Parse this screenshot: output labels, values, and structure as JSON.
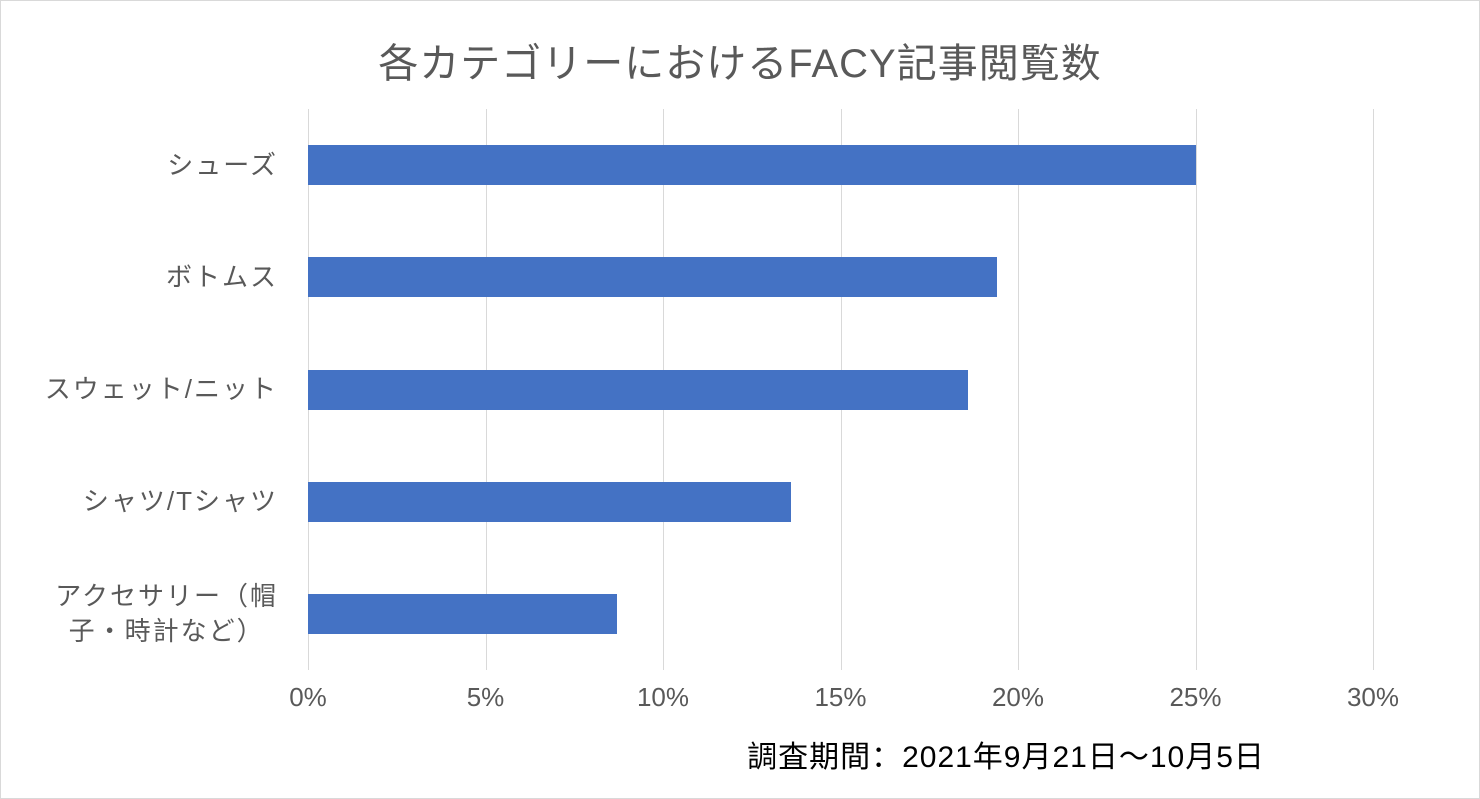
{
  "chart_data": {
    "type": "bar",
    "orientation": "horizontal",
    "title": "各カテゴリーにおけるFACY記事閲覧数",
    "categories": [
      "シューズ",
      "ボトムス",
      "スウェット/ニット",
      "シャツ/Tシャツ",
      "アクセサリー（帽\n子・時計など）"
    ],
    "values": [
      25.0,
      19.4,
      18.6,
      13.6,
      8.7
    ],
    "unit": "%",
    "xlabel": "",
    "ylabel": "",
    "xlim": [
      0,
      30
    ],
    "x_ticks": [
      "0%",
      "5%",
      "10%",
      "15%",
      "20%",
      "25%",
      "30%"
    ],
    "bar_color": "#4472C4",
    "gridline_color": "#D9D9D9",
    "axis_text_color": "#595959",
    "title_color": "#595959",
    "grid": "vertical-only",
    "legend": "none"
  },
  "footer": {
    "note": "調査期間：2021年9月21日～10月5日"
  }
}
